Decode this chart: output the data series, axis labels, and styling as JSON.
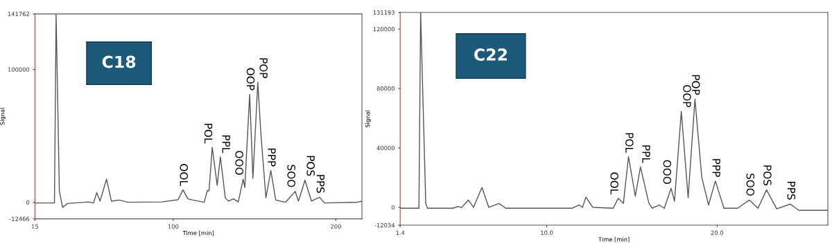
{
  "chart_data": [
    {
      "type": "line",
      "title": "C18",
      "xlabel": "Time [min]",
      "ylabel": "Signal",
      "xlim": [
        15,
        216
      ],
      "xticks": [
        15,
        100,
        200
      ],
      "ylim": [
        -12466,
        141762
      ],
      "yticks": [
        -12466,
        0,
        100000,
        141762
      ],
      "series": [
        {
          "color": "#555555",
          "x": [
            15,
            27,
            28,
            30,
            32,
            35,
            48,
            51,
            53,
            55,
            59,
            62,
            67,
            72,
            93,
            103,
            106,
            109,
            112,
            119,
            121,
            122,
            124,
            127,
            129,
            132,
            134,
            137,
            140,
            143,
            144,
            147,
            149,
            152,
            154,
            157,
            160,
            163,
            169,
            175,
            177,
            181,
            185,
            190,
            193,
            213,
            216
          ],
          "values": [
            -500,
            -500,
            141762,
            8500,
            -3800,
            -900,
            300,
            -500,
            7200,
            900,
            17400,
            900,
            1700,
            0,
            300,
            2000,
            9400,
            2600,
            1700,
            0,
            8900,
            8500,
            41400,
            12800,
            34200,
            3400,
            900,
            2600,
            300,
            17400,
            11100,
            81200,
            18000,
            90300,
            49600,
            3400,
            23900,
            1700,
            0,
            8200,
            900,
            16600,
            900,
            3800,
            -500,
            0,
            900
          ]
        }
      ],
      "annotations": [
        {
          "text": "OOL",
          "x": 106,
          "y": 9400
        },
        {
          "text": "POL",
          "x": 124,
          "y": 41400
        },
        {
          "text": "PPL",
          "x": 129,
          "y": 34200
        },
        {
          "text": "OOO",
          "x": 143,
          "y": 17400
        },
        {
          "text": "OOP",
          "x": 147,
          "y": 81200
        },
        {
          "text": "POP",
          "x": 152,
          "y": 90300
        },
        {
          "text": "PPP",
          "x": 160,
          "y": 23900
        },
        {
          "text": "SOO",
          "x": 175,
          "y": 8200
        },
        {
          "text": "POS",
          "x": 181,
          "y": 16600
        },
        {
          "text": "PPS",
          "x": 190,
          "y": 3800
        }
      ]
    },
    {
      "type": "line",
      "title": "C22",
      "xlabel": "Time [min]",
      "ylabel": "Signal",
      "xlim": [
        1.4,
        26.5
      ],
      "xticks": [
        1.4,
        {
          "value": 10,
          "label": "10.0"
        },
        {
          "value": 20,
          "label": "20.0"
        }
      ],
      "ylim": [
        -12034,
        131193
      ],
      "yticks": [
        -12034,
        0,
        40000,
        80000,
        120000,
        131193
      ],
      "series": [
        {
          "color": "#555555",
          "x": [
            1.4,
            2.5,
            2.6,
            2.9,
            3.0,
            4.5,
            4.8,
            5.0,
            5.4,
            5.7,
            6.2,
            6.6,
            7.2,
            7.6,
            11.5,
            11.9,
            12.1,
            12.3,
            12.7,
            13.9,
            14.2,
            14.5,
            14.8,
            15.2,
            15.5,
            16.0,
            16.2,
            16.6,
            16.9,
            17.3,
            17.5,
            17.9,
            18.3,
            18.7,
            19.1,
            19.5,
            19.9,
            20.4,
            21.2,
            21.9,
            22.4,
            22.9,
            23.5,
            24.3,
            24.8,
            26.5
          ],
          "values": [
            -600,
            -600,
            131193,
            2600,
            -600,
            -600,
            600,
            -200,
            4900,
            0,
            13400,
            0,
            2600,
            -600,
            -600,
            1600,
            0,
            6900,
            0,
            -600,
            6100,
            2600,
            34100,
            7500,
            27200,
            2600,
            -600,
            1600,
            -600,
            12800,
            4100,
            64600,
            6500,
            72900,
            20300,
            1600,
            17700,
            -600,
            -600,
            4900,
            -600,
            11800,
            -1000,
            2200,
            -2000,
            -2000
          ]
        }
      ],
      "annotations": [
        {
          "text": "OOL",
          "x": 14.2,
          "y": 6100
        },
        {
          "text": "POL",
          "x": 14.8,
          "y": 34100
        },
        {
          "text": "PPL",
          "x": 15.5,
          "y": 27200
        },
        {
          "text": "OOO",
          "x": 17.3,
          "y": 12800
        },
        {
          "text": "OOP",
          "x": 17.9,
          "y": 64600
        },
        {
          "text": "POP",
          "x": 18.7,
          "y": 72900
        },
        {
          "text": "PPP",
          "x": 19.9,
          "y": 17700
        },
        {
          "text": "SOO",
          "x": 21.9,
          "y": 4900
        },
        {
          "text": "POS",
          "x": 22.9,
          "y": 11800
        },
        {
          "text": "PPS",
          "x": 24.3,
          "y": 2200
        }
      ]
    }
  ]
}
